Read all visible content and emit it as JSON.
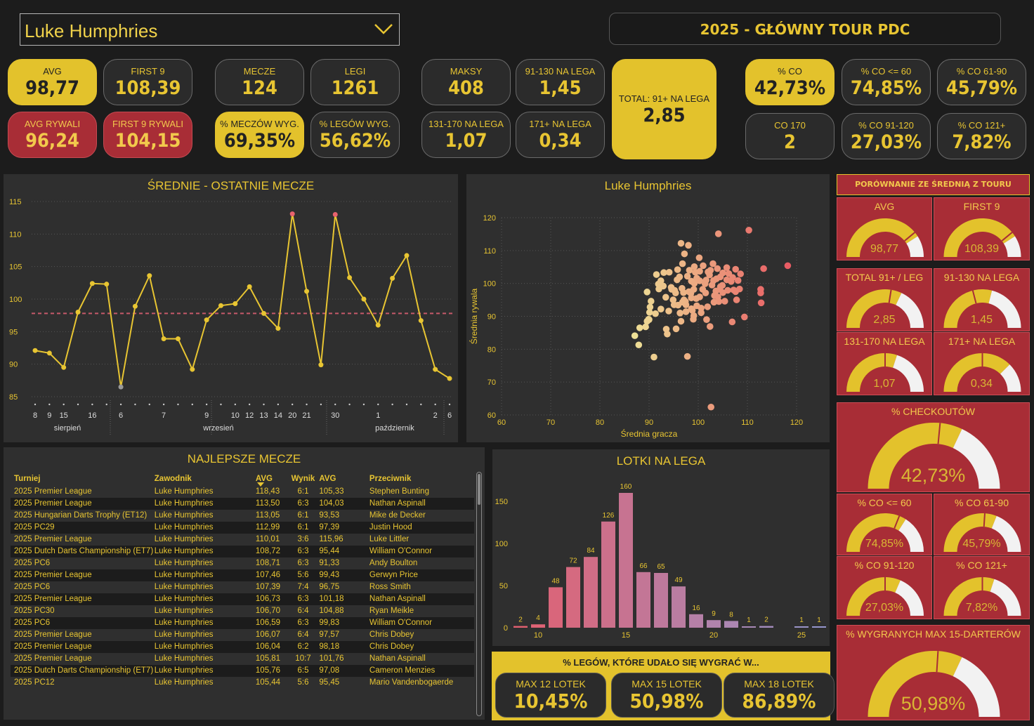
{
  "selector": {
    "value": "Luke Humphries"
  },
  "tour_title": "2025 - GŁÓWNY TOUR PDC",
  "kpis": {
    "avg": {
      "label": "AVG",
      "value": "98,77"
    },
    "first9": {
      "label": "FIRST 9",
      "value": "108,39"
    },
    "avg_opp": {
      "label": "AVG RYWALI",
      "value": "96,24"
    },
    "first9_opp": {
      "label": "FIRST 9 RYWALI",
      "value": "104,15"
    },
    "matches": {
      "label": "MECZE",
      "value": "124"
    },
    "legs": {
      "label": "LEGI",
      "value": "1261"
    },
    "match_win": {
      "label": "% MECZÓW WYG.",
      "value": "69,35%"
    },
    "leg_win": {
      "label": "% LEGÓW WYG.",
      "value": "56,62%"
    },
    "maxes": {
      "label": "MAKSY",
      "value": "408"
    },
    "s91_130": {
      "label": "91-130 NA LEGA",
      "value": "1,45"
    },
    "s131_170": {
      "label": "131-170 NA LEGA",
      "value": "1,07"
    },
    "s171": {
      "label": "171+ NA LEGA",
      "value": "0,34"
    },
    "total91": {
      "label": "TOTAL: 91+ NA LEGA",
      "value": "2,85"
    },
    "co": {
      "label": "% CO",
      "value": "42,73%"
    },
    "co60": {
      "label": "% CO <= 60",
      "value": "74,85%"
    },
    "co61_90": {
      "label": "% CO 61-90",
      "value": "45,79%"
    },
    "co170": {
      "label": "CO 170",
      "value": "2"
    },
    "co91_120": {
      "label": "% CO 91-120",
      "value": "27,03%"
    },
    "co121": {
      "label": "% CO 121+",
      "value": "7,82%"
    }
  },
  "line_panel": {
    "title": "ŚREDNIE - OSTATNIE MECZE",
    "y_ticks": [
      "115",
      "110",
      "105",
      "100",
      "95",
      "90",
      "85"
    ],
    "x_day_labels": [
      "8",
      "9",
      "15",
      "16",
      "6",
      "7",
      "9",
      "10",
      "12",
      "13",
      "14",
      "20",
      "21",
      "30",
      "1",
      "2",
      "6"
    ],
    "x_month_labels": [
      "sierpień",
      "wrzesień",
      "październik"
    ]
  },
  "scatter_panel": {
    "title": "Luke Humphries",
    "xlabel": "Średnia gracza",
    "ylabel": "Średnia rywala",
    "x_ticks": [
      "60",
      "70",
      "80",
      "90",
      "100",
      "110",
      "120"
    ],
    "y_ticks": [
      "120",
      "110",
      "100",
      "90",
      "80",
      "70",
      "60"
    ]
  },
  "bar_panel": {
    "title": "LOTKI NA LEGA",
    "y_ticks": [
      "150",
      "100",
      "50",
      "0"
    ],
    "x_ticks": [
      "10",
      "15",
      "20",
      "25"
    ]
  },
  "chart_data": [
    {
      "type": "line",
      "title": "ŚREDNIE - OSTATNIE MECZE",
      "ylim": [
        85,
        115
      ],
      "reference_line": 97.8,
      "values": [
        92.1,
        91.7,
        89.5,
        98.0,
        102.4,
        102.3,
        86.5,
        98.9,
        103.6,
        93.9,
        93.9,
        89.2,
        96.8,
        99.0,
        99.3,
        101.9,
        97.8,
        95.5,
        113.1,
        101.2,
        89.9,
        113.0,
        103.3,
        100.0,
        96.0,
        103.2,
        106.7,
        96.7,
        89.2,
        87.8
      ],
      "highlight_max": [
        18,
        21
      ]
    },
    {
      "type": "scatter",
      "title": "Luke Humphries",
      "xlabel": "Średnia gracza",
      "ylabel": "Średnia rywala",
      "xlim": [
        60,
        120
      ],
      "ylim": [
        60,
        120
      ],
      "points": [
        [
          87.1,
          84.1
        ],
        [
          87.9,
          81.3
        ],
        [
          88.1,
          86.5
        ],
        [
          89.6,
          97.4
        ],
        [
          89.6,
          88.5
        ],
        [
          89.3,
          86.8
        ],
        [
          89.9,
          89.1
        ],
        [
          90.4,
          94.6
        ],
        [
          90.2,
          92.8
        ],
        [
          90.1,
          91.2
        ],
        [
          90.0,
          89.0
        ],
        [
          91.3,
          90.8
        ],
        [
          91.0,
          77.6
        ],
        [
          91.5,
          102.7
        ],
        [
          91.9,
          99.8
        ],
        [
          92.0,
          98.3
        ],
        [
          92.4,
          100.8
        ],
        [
          93.0,
          103.3
        ],
        [
          93.5,
          86.1
        ],
        [
          93.7,
          84.6
        ],
        [
          94.1,
          103.4
        ],
        [
          94.6,
          98.2
        ],
        [
          94.5,
          98.8
        ],
        [
          95.1,
          93.5
        ],
        [
          95.4,
          97.1
        ],
        [
          95.7,
          101.1
        ],
        [
          95.5,
          86.2
        ],
        [
          95.9,
          93.4
        ],
        [
          96.2,
          102.0
        ],
        [
          96.7,
          98.5
        ],
        [
          97.1,
          95.0
        ],
        [
          97.5,
          91.4
        ],
        [
          97.8,
          77.8
        ],
        [
          97.5,
          93.5
        ],
        [
          97.8,
          102.2
        ],
        [
          98.2,
          104.0
        ],
        [
          98.1,
          97.5
        ],
        [
          98.8,
          91.8
        ],
        [
          98.6,
          95.6
        ],
        [
          98.6,
          100.7
        ],
        [
          99.1,
          90.2
        ],
        [
          99.0,
          89.1
        ],
        [
          99.7,
          93.2
        ],
        [
          99.2,
          100.0
        ],
        [
          99.1,
          98.2
        ],
        [
          99.2,
          105.1
        ],
        [
          99.7,
          101.6
        ],
        [
          100.2,
          107.8
        ],
        [
          100.6,
          92.5
        ],
        [
          100.3,
          95.9
        ],
        [
          100.6,
          91.1
        ],
        [
          100.3,
          103.7
        ],
        [
          101.5,
          97.1
        ],
        [
          101.6,
          101.0
        ],
        [
          101.9,
          92.9
        ],
        [
          101.7,
          89.0
        ],
        [
          102.3,
          102.6
        ],
        [
          102.5,
          104.0
        ],
        [
          102.4,
          86.9
        ],
        [
          102.8,
          99.5
        ],
        [
          103.1,
          100.9
        ],
        [
          103.3,
          96.3
        ],
        [
          103.7,
          101.4
        ],
        [
          103.9,
          104.5
        ],
        [
          104.2,
          94.5
        ],
        [
          104.5,
          99.0
        ],
        [
          104.5,
          102.0
        ],
        [
          105.4,
          94.6
        ],
        [
          105.8,
          101.1
        ],
        [
          106.0,
          97.9
        ],
        [
          106.9,
          88.3
        ],
        [
          107.0,
          101.8
        ],
        [
          107.8,
          95.0
        ],
        [
          107.6,
          104.3
        ],
        [
          108.1,
          100.9
        ],
        [
          108.4,
          98.3
        ],
        [
          108.6,
          102.9
        ],
        [
          109.4,
          89.8
        ],
        [
          112.7,
          97.1
        ],
        [
          112.8,
          94.1
        ],
        [
          113.3,
          104.5
        ],
        [
          112.7,
          98.2
        ],
        [
          102.6,
          62.4
        ],
        [
          104.1,
          115.1
        ],
        [
          110.3,
          116.2
        ],
        [
          118.2,
          105.4
        ],
        [
          97.2,
          109.0
        ],
        [
          96.5,
          112.2
        ],
        [
          98.0,
          111.6
        ],
        [
          96.8,
          106.0
        ],
        [
          95.8,
          104.2
        ],
        [
          97.0,
          97.2
        ],
        [
          96.3,
          91.0
        ],
        [
          97.4,
          94.5
        ],
        [
          99.6,
          95.4
        ],
        [
          100.3,
          100.8
        ],
        [
          100.9,
          98.2
        ],
        [
          101.4,
          99.9
        ],
        [
          102.0,
          103.5
        ],
        [
          103.6,
          97.7
        ],
        [
          104.4,
          98.2
        ],
        [
          105.8,
          104.8
        ],
        [
          106.7,
          100.6
        ],
        [
          107.2,
          98.0
        ],
        [
          107.6,
          97.5
        ],
        [
          104.9,
          99.4
        ],
        [
          104.0,
          95.9
        ],
        [
          98.5,
          97.0
        ],
        [
          95.2,
          97.9
        ],
        [
          93.4,
          95.8
        ],
        [
          92.4,
          92.2
        ],
        [
          94.0,
          91.6
        ],
        [
          94.9,
          95.0
        ],
        [
          96.8,
          94.3
        ],
        [
          99.4,
          103.4
        ],
        [
          101.0,
          105.4
        ],
        [
          103.0,
          106.0
        ],
        [
          105.0,
          103.2
        ],
        [
          106.2,
          103.0
        ],
        [
          105.0,
          97.2
        ],
        [
          103.2,
          94.3
        ],
        [
          98.6,
          92.3
        ],
        [
          96.5,
          88.5
        ],
        [
          92.9,
          99.2
        ]
      ]
    },
    {
      "type": "bar",
      "title": "LOTKI NA LEGA",
      "categories": [
        "9",
        "10",
        "11",
        "12",
        "13",
        "14",
        "15",
        "16",
        "17",
        "18",
        "19",
        "20",
        "21",
        "22",
        "23",
        "24",
        "25",
        "26"
      ],
      "values": [
        2,
        4,
        48,
        72,
        84,
        126,
        160,
        66,
        65,
        49,
        16,
        9,
        8,
        1,
        2,
        0,
        1,
        1
      ],
      "ylim": [
        0,
        170
      ]
    }
  ],
  "best_matches": {
    "title": "NAJLEPSZE MECZE",
    "headers": [
      "Turniej",
      "Zawodnik",
      "AVG",
      "Wynik",
      "AVG",
      "Przeciwnik"
    ],
    "rows": [
      [
        "2025 Premier League",
        "Luke Humphries",
        "118,43",
        "6:1",
        "105,33",
        "Stephen Bunting"
      ],
      [
        "2025 Premier League",
        "Luke Humphries",
        "113,50",
        "6:3",
        "104,03",
        "Nathan Aspinall"
      ],
      [
        "2025 Hungarian Darts Trophy (ET12)",
        "Luke Humphries",
        "113,05",
        "6:1",
        "93,53",
        "Mike de Decker"
      ],
      [
        "2025 PC29",
        "Luke Humphries",
        "112,99",
        "6:1",
        "97,39",
        "Justin Hood"
      ],
      [
        "2025 Premier League",
        "Luke Humphries",
        "110,01",
        "3:6",
        "115,96",
        "Luke Littler"
      ],
      [
        "2025 Dutch Darts Championship (ET7)",
        "Luke Humphries",
        "108,72",
        "6:3",
        "95,44",
        "William O'Connor"
      ],
      [
        "2025 PC6",
        "Luke Humphries",
        "108,71",
        "6:3",
        "91,33",
        "Andy Boulton"
      ],
      [
        "2025 Premier League",
        "Luke Humphries",
        "107,46",
        "5:6",
        "99,43",
        "Gerwyn Price"
      ],
      [
        "2025 PC6",
        "Luke Humphries",
        "107,39",
        "7:4",
        "96,75",
        "Ross Smith"
      ],
      [
        "2025 Premier League",
        "Luke Humphries",
        "106,73",
        "6:3",
        "101,18",
        "Nathan Aspinall"
      ],
      [
        "2025 PC30",
        "Luke Humphries",
        "106,70",
        "6:4",
        "104,88",
        "Ryan Meikle"
      ],
      [
        "2025 PC6",
        "Luke Humphries",
        "106,59",
        "6:3",
        "99,83",
        "William O'Connor"
      ],
      [
        "2025 Premier League",
        "Luke Humphries",
        "106,07",
        "6:4",
        "97,57",
        "Chris Dobey"
      ],
      [
        "2025 Premier League",
        "Luke Humphries",
        "106,04",
        "6:2",
        "98,18",
        "Chris Dobey"
      ],
      [
        "2025 Premier League",
        "Luke Humphries",
        "105,81",
        "10:7",
        "101,76",
        "Nathan Aspinall"
      ],
      [
        "2025 Dutch Darts Championship (ET7)",
        "Luke Humphries",
        "105,76",
        "6:5",
        "97,08",
        "Cameron Menzies"
      ],
      [
        "2025 PC12",
        "Luke Humphries",
        "105,44",
        "5:6",
        "95,45",
        "Mario Vandenbogaerde"
      ]
    ]
  },
  "win_within": {
    "title": "% LEGÓW, KTÓRE UDAŁO SIĘ WYGRAĆ W...",
    "cards": [
      {
        "label": "MAX 12 LOTEK",
        "value": "10,45%"
      },
      {
        "label": "MAX 15 LOTEK",
        "value": "50,98%"
      },
      {
        "label": "MAX 18 LOTEK",
        "value": "86,89%"
      }
    ]
  },
  "comparison": {
    "title": "PORÓWNANIE ZE ŚREDNIĄ Z TOURU",
    "gauges": [
      {
        "label": "AVG",
        "value": "98,77",
        "fraction": 0.82,
        "target": 0.78
      },
      {
        "label": "FIRST 9",
        "value": "108,39",
        "fraction": 0.82,
        "target": 0.78
      },
      {
        "label": "TOTAL 91+ / LEG",
        "value": "2,85",
        "fraction": 0.64,
        "target": 0.55
      },
      {
        "label": "91-130 NA LEGA",
        "value": "1,45",
        "fraction": 0.58,
        "target": 0.42
      },
      {
        "label": "131-170 NA LEGA",
        "value": "1,07",
        "fraction": 0.6,
        "target": 0.5
      },
      {
        "label": "171+ NA LEGA",
        "value": "0,34",
        "fraction": 0.75,
        "target": 0.5
      },
      {
        "label": "% CHECKOUTÓW",
        "value": "42,73%",
        "fraction": 0.64,
        "target": 0.53
      },
      {
        "label": "% CO <= 60",
        "value": "74,85%",
        "fraction": 0.68,
        "target": 0.62
      },
      {
        "label": "% CO 61-90",
        "value": "45,79%",
        "fraction": 0.62,
        "target": 0.52
      },
      {
        "label": "% CO 91-120",
        "value": "27,03%",
        "fraction": 0.63,
        "target": 0.5
      },
      {
        "label": "% CO 121+",
        "value": "7,82%",
        "fraction": 0.6,
        "target": 0.5
      },
      {
        "label": "% WYGRANYCH MAX 15-DARTERÓW",
        "value": "50,98%",
        "fraction": 0.64,
        "target": 0.52
      }
    ]
  }
}
